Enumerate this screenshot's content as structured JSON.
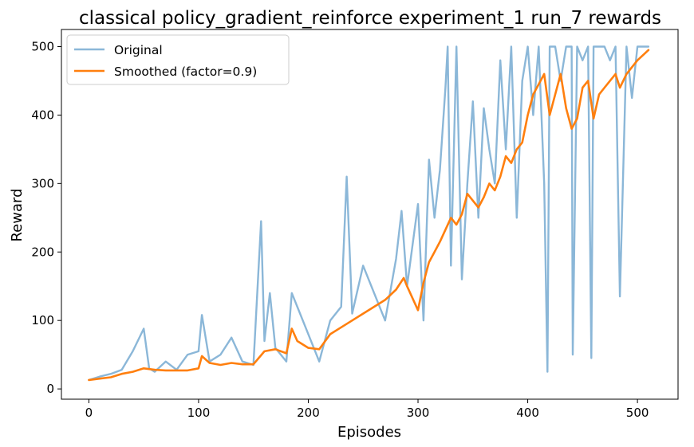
{
  "chart_data": {
    "type": "line",
    "title": "classical policy_gradient_reinforce experiment_1 run_7 rewards",
    "xlabel": "Episodes",
    "ylabel": "Reward",
    "xlim": [
      -25,
      537
    ],
    "ylim": [
      -15,
      525
    ],
    "xticks": [
      0,
      100,
      200,
      300,
      400,
      500
    ],
    "yticks": [
      0,
      100,
      200,
      300,
      400,
      500
    ],
    "grid": false,
    "legend_position": "top-left",
    "series": [
      {
        "name": "Original",
        "color": "#8bb7d8",
        "x": [
          0,
          10,
          20,
          30,
          40,
          50,
          55,
          60,
          70,
          80,
          90,
          100,
          103,
          110,
          120,
          130,
          140,
          150,
          157,
          160,
          165,
          170,
          180,
          185,
          190,
          200,
          210,
          220,
          230,
          235,
          240,
          250,
          260,
          270,
          280,
          285,
          290,
          300,
          305,
          310,
          315,
          320,
          325,
          327,
          330,
          335,
          340,
          345,
          350,
          355,
          360,
          365,
          370,
          375,
          380,
          385,
          390,
          395,
          400,
          405,
          410,
          415,
          418,
          420,
          425,
          430,
          435,
          440,
          441,
          445,
          450,
          455,
          458,
          460,
          465,
          470,
          475,
          480,
          484,
          490,
          495,
          500,
          510
        ],
        "y": [
          13,
          18,
          22,
          28,
          55,
          88,
          30,
          25,
          40,
          28,
          50,
          55,
          108,
          40,
          50,
          75,
          40,
          35,
          245,
          70,
          140,
          60,
          40,
          140,
          120,
          80,
          40,
          100,
          120,
          310,
          110,
          180,
          140,
          100,
          190,
          260,
          150,
          270,
          100,
          335,
          250,
          320,
          440,
          500,
          180,
          500,
          160,
          300,
          420,
          250,
          410,
          350,
          300,
          480,
          350,
          500,
          250,
          450,
          500,
          400,
          500,
          300,
          25,
          500,
          500,
          450,
          500,
          500,
          50,
          500,
          480,
          500,
          45,
          500,
          500,
          500,
          480,
          500,
          135,
          500,
          425,
          500,
          500
        ]
      },
      {
        "name": "Smoothed (factor=0.9)",
        "color": "#ff7f0e",
        "x": [
          0,
          10,
          20,
          30,
          40,
          50,
          60,
          70,
          80,
          90,
          100,
          103,
          110,
          120,
          130,
          140,
          150,
          160,
          170,
          180,
          185,
          190,
          200,
          210,
          220,
          230,
          240,
          250,
          260,
          270,
          280,
          287,
          290,
          300,
          305,
          310,
          315,
          320,
          330,
          335,
          340,
          345,
          350,
          355,
          360,
          365,
          370,
          375,
          380,
          385,
          390,
          395,
          400,
          405,
          410,
          415,
          420,
          425,
          430,
          435,
          440,
          445,
          450,
          455,
          460,
          465,
          470,
          475,
          480,
          484,
          490,
          495,
          500,
          510
        ],
        "y": [
          13,
          15,
          17,
          22,
          25,
          30,
          28,
          27,
          27,
          27,
          30,
          48,
          38,
          35,
          38,
          36,
          36,
          55,
          58,
          52,
          88,
          70,
          60,
          58,
          80,
          90,
          100,
          110,
          120,
          130,
          145,
          162,
          150,
          115,
          155,
          185,
          200,
          215,
          250,
          240,
          255,
          285,
          275,
          265,
          280,
          300,
          290,
          310,
          340,
          330,
          350,
          360,
          400,
          430,
          445,
          460,
          400,
          430,
          460,
          410,
          380,
          395,
          440,
          450,
          395,
          430,
          440,
          450,
          460,
          440,
          460,
          470,
          480,
          495
        ]
      }
    ]
  }
}
